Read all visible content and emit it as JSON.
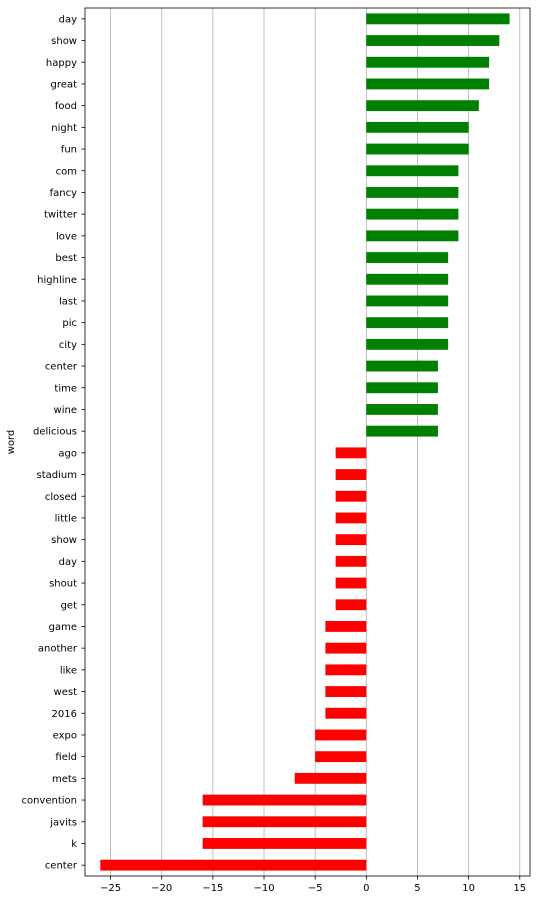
{
  "chart_data": {
    "type": "bar",
    "orientation": "horizontal",
    "title": "",
    "xlabel": "",
    "ylabel": "word",
    "xlim": [
      -27.5,
      16
    ],
    "xticks": [
      -25,
      -20,
      -15,
      -10,
      -5,
      0,
      5,
      10,
      15
    ],
    "xtick_labels": [
      "−25",
      "−20",
      "−15",
      "−10",
      "−5",
      "0",
      "5",
      "10",
      "15"
    ],
    "grid": "vertical",
    "colors": {
      "positive": "#008000",
      "negative": "#ff0000"
    },
    "categories": [
      "day",
      "show",
      "happy",
      "great",
      "food",
      "night",
      "fun",
      "com",
      "fancy",
      "twitter",
      "love",
      "best",
      "highline",
      "last",
      "pic",
      "city",
      "center",
      "time",
      "wine",
      "delicious",
      "ago",
      "stadium",
      "closed",
      "little",
      "show",
      "day",
      "shout",
      "get",
      "game",
      "another",
      "like",
      "west",
      "2016",
      "expo",
      "field",
      "mets",
      "convention",
      "javits",
      "k",
      "center"
    ],
    "values": [
      14,
      13,
      12,
      12,
      11,
      10,
      10,
      9,
      9,
      9,
      9,
      8,
      8,
      8,
      8,
      8,
      7,
      7,
      7,
      7,
      -3,
      -3,
      -3,
      -3,
      -3,
      -3,
      -3,
      -3,
      -4,
      -4,
      -4,
      -4,
      -4,
      -5,
      -5,
      -7,
      -16,
      -16,
      -16,
      -26
    ]
  }
}
